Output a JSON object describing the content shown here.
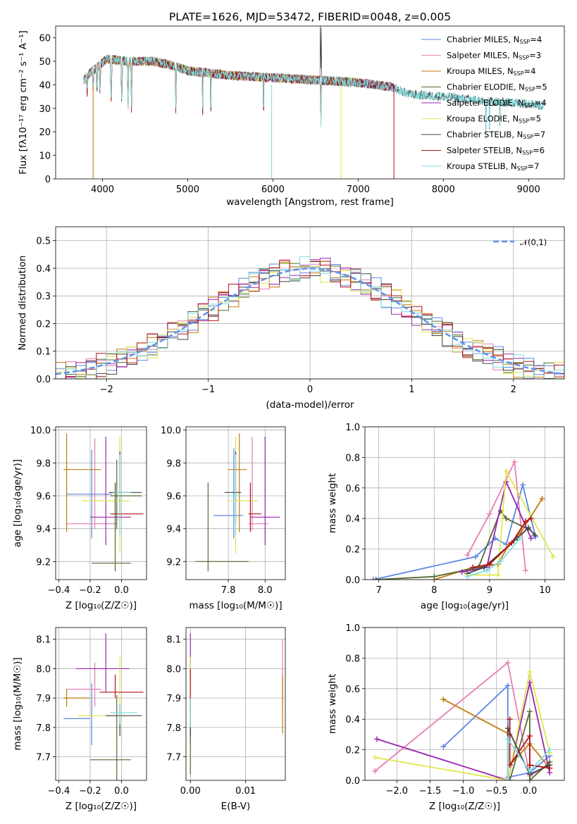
{
  "colors": [
    "#5b86e5",
    "#e57fb5",
    "#c17a0a",
    "#556b2f",
    "#9b27b0",
    "#e0e84a",
    "#444444",
    "#b5121b",
    "#7fdde0"
  ],
  "chart_data": [
    {
      "id": "spectrum",
      "type": "line",
      "title": "PLATE=1626, MJD=53472, FIBERID=0048, z=0.005",
      "xlabel": "wavelength [Angstrom, rest frame]",
      "ylabel": "Flux [fλ10⁻¹⁷ erg cm⁻² s⁻¹ A⁻¹]",
      "xlim": [
        3450,
        9420
      ],
      "ylim": [
        0,
        65
      ],
      "xticks": [
        4000,
        5000,
        6000,
        7000,
        8000,
        9000
      ],
      "yticks": [
        0,
        10,
        20,
        30,
        40,
        50,
        60
      ],
      "grid": false,
      "legend_placement": "upper-right",
      "series": [
        {
          "name": "Chabrier MILES, N",
          "sub": "SSP",
          "suffix": "=4"
        },
        {
          "name": "Salpeter MILES, N",
          "sub": "SSP",
          "suffix": "=3"
        },
        {
          "name": "Kroupa MILES, N",
          "sub": "SSP",
          "suffix": "=4"
        },
        {
          "name": "Chabrier ELODIE, N",
          "sub": "SSP",
          "suffix": "=5"
        },
        {
          "name": "Salpeter ELODIE, N",
          "sub": "SSP",
          "suffix": "=4"
        },
        {
          "name": "Kroupa ELODIE, N",
          "sub": "SSP",
          "suffix": "=5"
        },
        {
          "name": "Chabrier STELIB, N",
          "sub": "SSP",
          "suffix": "=7"
        },
        {
          "name": "Salpeter STELIB, N",
          "sub": "SSP",
          "suffix": "=6"
        },
        {
          "name": "Kroupa STELIB, N",
          "sub": "SSP",
          "suffix": "=7"
        }
      ],
      "continuum": {
        "x": [
          3780,
          3850,
          3950,
          4050,
          4300,
          4600,
          4850,
          5000,
          5500,
          6000,
          6500,
          7000,
          7400,
          7600,
          8000,
          8500,
          9000,
          9180
        ],
        "y": [
          42,
          45,
          48,
          51,
          50,
          50,
          48,
          46,
          44,
          43,
          42,
          41,
          39,
          36,
          35,
          33,
          32,
          31
        ]
      },
      "series_end_x": [
        7420,
        7420,
        7420,
        7000,
        7420,
        7000,
        9180,
        7420,
        9180
      ]
    },
    {
      "id": "residuals",
      "type": "line",
      "xlabel": "(data-model)/error",
      "ylabel": "Normed distribution",
      "xlim": [
        -2.5,
        2.5
      ],
      "ylim": [
        0,
        0.55
      ],
      "xticks": [
        -2,
        -1,
        0,
        1,
        2
      ],
      "xtick_labels": [
        "−2",
        "−1",
        "0",
        "1",
        "2"
      ],
      "yticks": [
        0.0,
        0.1,
        0.2,
        0.3,
        0.4,
        0.5
      ],
      "ytick_labels": [
        "0.0",
        "0.1",
        "0.2",
        "0.3",
        "0.4",
        "0.5"
      ],
      "grid": true,
      "legend_placement": "upper-right",
      "gaussian_label": "𝒩(0,1)",
      "bin_width": 0.1
    },
    {
      "id": "age_vs_Z",
      "type": "scatter",
      "xlabel": "Z [log₁₀(Z/Z☉)]",
      "ylabel": "age  [log₁₀(age/yr)]",
      "xlim": [
        -0.42,
        0.16
      ],
      "ylim": [
        9.09,
        10.02
      ],
      "xticks": [
        -0.4,
        -0.2,
        0.0
      ],
      "xtick_labels": [
        "−0.4",
        "−0.2",
        "0.0"
      ],
      "yticks": [
        9.2,
        9.4,
        9.6,
        9.8,
        10.0
      ],
      "ytick_labels": [
        "9.2",
        "9.4",
        "9.6",
        "9.8",
        "10.0"
      ],
      "grid": true,
      "points": [
        {
          "x": -0.19,
          "y": 9.61,
          "xlo": -0.35,
          "xhi": -0.06,
          "ylo": 9.34,
          "yhi": 9.88
        },
        {
          "x": -0.17,
          "y": 9.43,
          "xlo": -0.35,
          "xhi": -0.03,
          "ylo": 9.4,
          "yhi": 9.95
        },
        {
          "x": -0.35,
          "y": 9.76,
          "xlo": -0.37,
          "xhi": -0.13,
          "ylo": 9.38,
          "yhi": 9.98
        },
        {
          "x": -0.03,
          "y": 9.6,
          "xlo": -0.07,
          "xhi": 0.13,
          "ylo": 9.4,
          "yhi": 9.82
        },
        {
          "x": -0.1,
          "y": 9.47,
          "xlo": -0.2,
          "xhi": 0.06,
          "ylo": 9.3,
          "yhi": 9.96
        },
        {
          "x": -0.01,
          "y": 9.57,
          "xlo": -0.25,
          "xhi": 0.05,
          "ylo": 9.25,
          "yhi": 9.96
        },
        {
          "x": -0.01,
          "y": 9.62,
          "xlo": -0.08,
          "xhi": 0.13,
          "ylo": 9.44,
          "yhi": 9.87
        },
        {
          "x": -0.04,
          "y": 9.49,
          "xlo": -0.07,
          "xhi": 0.14,
          "ylo": 9.38,
          "yhi": 9.68
        },
        {
          "x": -0.01,
          "y": 9.62,
          "xlo": -0.05,
          "xhi": 0.06,
          "ylo": 9.36,
          "yhi": 9.85
        }
      ],
      "extra_points": [
        {
          "x": -0.04,
          "y": 9.19,
          "xlo": -0.19,
          "xhi": 0.06,
          "ylo": 9.14,
          "yhi": 9.68,
          "c": 3
        }
      ]
    },
    {
      "id": "age_vs_mass",
      "type": "scatter",
      "xlabel": "mass [log₁₀(M/M☉)]",
      "xlim": [
        7.57,
        8.11
      ],
      "ylim": [
        9.09,
        10.02
      ],
      "xticks": [
        7.8,
        8.0
      ],
      "xtick_labels": [
        "7.8",
        "8.0"
      ],
      "yticks": [
        9.2,
        9.4,
        9.6,
        9.8,
        10.0
      ],
      "ytick_labels": [
        "9.2",
        "9.4",
        "9.6",
        "9.8",
        "10.0"
      ],
      "grid": true,
      "points": [
        {
          "x": 7.83,
          "y": 9.48,
          "xlo": 7.72,
          "xhi": 7.88,
          "ylo": 9.34,
          "yhi": 9.89
        },
        {
          "x": 7.93,
          "y": 9.43,
          "xlo": 7.91,
          "xhi": 8.02,
          "ylo": 9.39,
          "yhi": 9.96
        },
        {
          "x": 7.86,
          "y": 9.76,
          "xlo": 7.8,
          "xhi": 7.9,
          "ylo": 9.38,
          "yhi": 9.98
        },
        {
          "x": 7.69,
          "y": 9.2,
          "xlo": 7.62,
          "xhi": 7.91,
          "ylo": 9.14,
          "yhi": 9.68
        },
        {
          "x": 8.0,
          "y": 9.47,
          "xlo": 7.92,
          "xhi": 8.08,
          "ylo": 9.3,
          "yhi": 9.96
        },
        {
          "x": 7.84,
          "y": 9.57,
          "xlo": 7.8,
          "xhi": 7.96,
          "ylo": 9.25,
          "yhi": 9.96
        },
        {
          "x": 7.84,
          "y": 9.62,
          "xlo": 7.78,
          "xhi": 7.87,
          "ylo": 9.44,
          "yhi": 9.87
        },
        {
          "x": 7.92,
          "y": 9.49,
          "xlo": 7.91,
          "xhi": 7.98,
          "ylo": 9.38,
          "yhi": 9.68
        },
        {
          "x": 7.84,
          "y": 9.6,
          "xlo": 7.81,
          "xhi": 7.86,
          "ylo": 9.36,
          "yhi": 9.85
        }
      ]
    },
    {
      "id": "weight_vs_age",
      "type": "line",
      "xlabel": "age  [log₁₀(age/yr)]",
      "ylabel": "mass weight",
      "xlim": [
        6.75,
        10.35
      ],
      "ylim": [
        0,
        1.0
      ],
      "xticks": [
        7,
        8,
        9,
        10
      ],
      "xtick_labels": [
        "7",
        "8",
        "9",
        "10"
      ],
      "yticks": [
        0.0,
        0.2,
        0.4,
        0.6,
        0.8,
        1.0
      ],
      "ytick_labels": [
        "0.0",
        "0.2",
        "0.4",
        "0.6",
        "0.8",
        "1.0"
      ],
      "grid": true,
      "series": [
        {
          "x": [
            6.9,
            8.75,
            9.1,
            9.3,
            9.6,
            9.83
          ],
          "y": [
            0.0,
            0.15,
            0.27,
            0.23,
            0.62,
            0.28
          ]
        },
        {
          "x": [
            8.6,
            9.0,
            9.45,
            9.65
          ],
          "y": [
            0.16,
            0.43,
            0.77,
            0.06
          ]
        },
        {
          "x": [
            8.0,
            8.7,
            9.15,
            9.35,
            9.55,
            9.95
          ],
          "y": [
            0.0,
            0.08,
            0.1,
            0.23,
            0.3,
            0.53
          ]
        },
        {
          "x": [
            6.95,
            8.0,
            8.8,
            9.2,
            9.3,
            9.7
          ],
          "y": [
            0.0,
            0.02,
            0.08,
            0.45,
            0.4,
            0.33
          ]
        },
        {
          "x": [
            8.5,
            8.95,
            9.3,
            9.75
          ],
          "y": [
            0.05,
            0.08,
            0.64,
            0.27
          ]
        },
        {
          "x": [
            8.6,
            9.15,
            9.3,
            10.15
          ],
          "y": [
            0.03,
            0.03,
            0.71,
            0.15
          ]
        },
        {
          "x": [
            8.6,
            8.9,
            9.5,
            9.7,
            9.82
          ],
          "y": [
            0.04,
            0.08,
            0.27,
            0.34,
            0.29
          ]
        },
        {
          "x": [
            8.7,
            9.0,
            9.4,
            9.65,
            9.75
          ],
          "y": [
            0.08,
            0.1,
            0.24,
            0.38,
            0.4
          ]
        },
        {
          "x": [
            8.6,
            8.95,
            9.2,
            9.55
          ],
          "y": [
            0.02,
            0.06,
            0.12,
            0.27
          ]
        }
      ]
    },
    {
      "id": "mass_vs_Z",
      "type": "scatter",
      "xlabel": "Z [log₁₀(Z/Z☉)]",
      "ylabel": "mass [log₁₀(M/M☉)]",
      "xlim": [
        -0.42,
        0.16
      ],
      "ylim": [
        7.62,
        8.14
      ],
      "xticks": [
        -0.4,
        -0.2,
        0.0
      ],
      "xtick_labels": [
        "−0.4",
        "−0.2",
        "0.0"
      ],
      "yticks": [
        7.7,
        7.8,
        7.9,
        8.0,
        8.1
      ],
      "ytick_labels": [
        "7.7",
        "7.8",
        "7.9",
        "8.0",
        "8.1"
      ],
      "grid": true,
      "points": [
        {
          "x": -0.19,
          "y": 7.83,
          "xlo": -0.37,
          "xhi": -0.2,
          "ylo": 7.74,
          "yhi": 7.95
        },
        {
          "x": -0.17,
          "y": 7.93,
          "xlo": -0.35,
          "xhi": -0.13,
          "ylo": 7.87,
          "yhi": 8.02
        },
        {
          "x": -0.35,
          "y": 7.9,
          "xlo": -0.37,
          "xhi": -0.2,
          "ylo": 7.87,
          "yhi": 7.93
        },
        {
          "x": -0.03,
          "y": 7.69,
          "xlo": -0.2,
          "xhi": 0.06,
          "ylo": 7.62,
          "yhi": 7.91
        },
        {
          "x": -0.1,
          "y": 8.0,
          "xlo": -0.29,
          "xhi": 0.05,
          "ylo": 7.92,
          "yhi": 8.12
        },
        {
          "x": -0.01,
          "y": 7.84,
          "xlo": -0.28,
          "xhi": 0.05,
          "ylo": 7.8,
          "yhi": 8.04
        },
        {
          "x": -0.01,
          "y": 7.84,
          "xlo": -0.1,
          "xhi": 0.13,
          "ylo": 7.77,
          "yhi": 7.88
        },
        {
          "x": -0.04,
          "y": 7.92,
          "xlo": -0.14,
          "xhi": 0.14,
          "ylo": 7.9,
          "yhi": 7.98
        },
        {
          "x": -0.01,
          "y": 7.85,
          "xlo": -0.07,
          "xhi": 0.1,
          "ylo": 7.81,
          "yhi": 7.88
        }
      ]
    },
    {
      "id": "mass_vs_ebv",
      "type": "scatter",
      "xlabel": "E(B-V)",
      "xlim": [
        -0.0008,
        0.0172
      ],
      "ylim": [
        7.62,
        8.14
      ],
      "xticks": [
        0.0,
        0.01
      ],
      "xtick_labels": [
        "0.00",
        "0.01"
      ],
      "yticks": [
        7.7,
        7.8,
        7.9,
        8.0,
        8.1
      ],
      "ytick_labels": [
        "7.7",
        "7.8",
        "7.9",
        "8.0",
        "8.1"
      ],
      "grid": true,
      "points": [
        {
          "x": 0.0,
          "y": 7.83,
          "ylo": 7.74,
          "yhi": 7.95
        },
        {
          "x": 0.0167,
          "y": 7.93,
          "ylo": 7.87,
          "yhi": 8.1
        },
        {
          "x": 0.0167,
          "y": 7.9,
          "ylo": 7.78,
          "yhi": 7.98
        },
        {
          "x": 0.0,
          "y": 7.69,
          "ylo": 7.64,
          "yhi": 7.91
        },
        {
          "x": 0.0,
          "y": 8.0,
          "ylo": 7.95,
          "yhi": 8.12
        },
        {
          "x": 0.0,
          "y": 7.84,
          "ylo": 7.8,
          "yhi": 8.04
        },
        {
          "x": 0.0,
          "y": 7.84,
          "ylo": 7.77,
          "yhi": 7.88
        },
        {
          "x": 0.0,
          "y": 7.92,
          "ylo": 7.85,
          "yhi": 8.0
        },
        {
          "x": 0.0,
          "y": 7.85,
          "ylo": 7.8,
          "yhi": 7.9
        }
      ]
    },
    {
      "id": "weight_vs_Z",
      "type": "line",
      "xlabel": "Z [log₁₀(Z/Z☉)]",
      "ylabel": "mass weight",
      "xlim": [
        -2.48,
        0.52
      ],
      "ylim": [
        0,
        1.0
      ],
      "xticks": [
        -2.0,
        -1.5,
        -1.0,
        -0.5,
        0.0
      ],
      "xtick_labels": [
        "−2.0",
        "−1.5",
        "−1.0",
        "−0.5",
        "0.0"
      ],
      "yticks": [
        0.0,
        0.2,
        0.4,
        0.6,
        0.8,
        1.0
      ],
      "ytick_labels": [
        "0.0",
        "0.2",
        "0.4",
        "0.6",
        "0.8",
        "1.0"
      ],
      "grid": true,
      "series": [
        {
          "x": [
            -1.3,
            -0.33,
            -0.33,
            0.0,
            0.3
          ],
          "y": [
            0.22,
            0.62,
            0.02,
            0.05,
            0.16
          ]
        },
        {
          "x": [
            -2.33,
            -0.33,
            0.0,
            0.3
          ],
          "y": [
            0.06,
            0.77,
            0.03,
            0.1
          ]
        },
        {
          "x": [
            -1.3,
            -0.3,
            -0.3,
            0.0,
            0.3
          ],
          "y": [
            0.53,
            0.3,
            0.1,
            0.24,
            0.08
          ]
        },
        {
          "x": [
            -0.3,
            0.0,
            0.0,
            0.3
          ],
          "y": [
            0.0,
            0.45,
            0.0,
            0.12
          ]
        },
        {
          "x": [
            -2.3,
            -0.33,
            0.0,
            0.3
          ],
          "y": [
            0.27,
            0.0,
            0.64,
            0.05
          ]
        },
        {
          "x": [
            -2.33,
            -0.33,
            0.0,
            0.3
          ],
          "y": [
            0.15,
            0.0,
            0.71,
            0.18
          ]
        },
        {
          "x": [
            -0.33,
            -0.33,
            0.0,
            0.3
          ],
          "y": [
            0.0,
            0.34,
            0.04,
            0.1
          ]
        },
        {
          "x": [
            -0.3,
            -0.3,
            0.0,
            0.0,
            0.3
          ],
          "y": [
            0.4,
            0.1,
            0.29,
            0.1,
            0.08
          ]
        },
        {
          "x": [
            -0.33,
            -0.33,
            0.0,
            0.3
          ],
          "y": [
            0.0,
            0.27,
            0.06,
            0.2
          ]
        }
      ]
    }
  ]
}
